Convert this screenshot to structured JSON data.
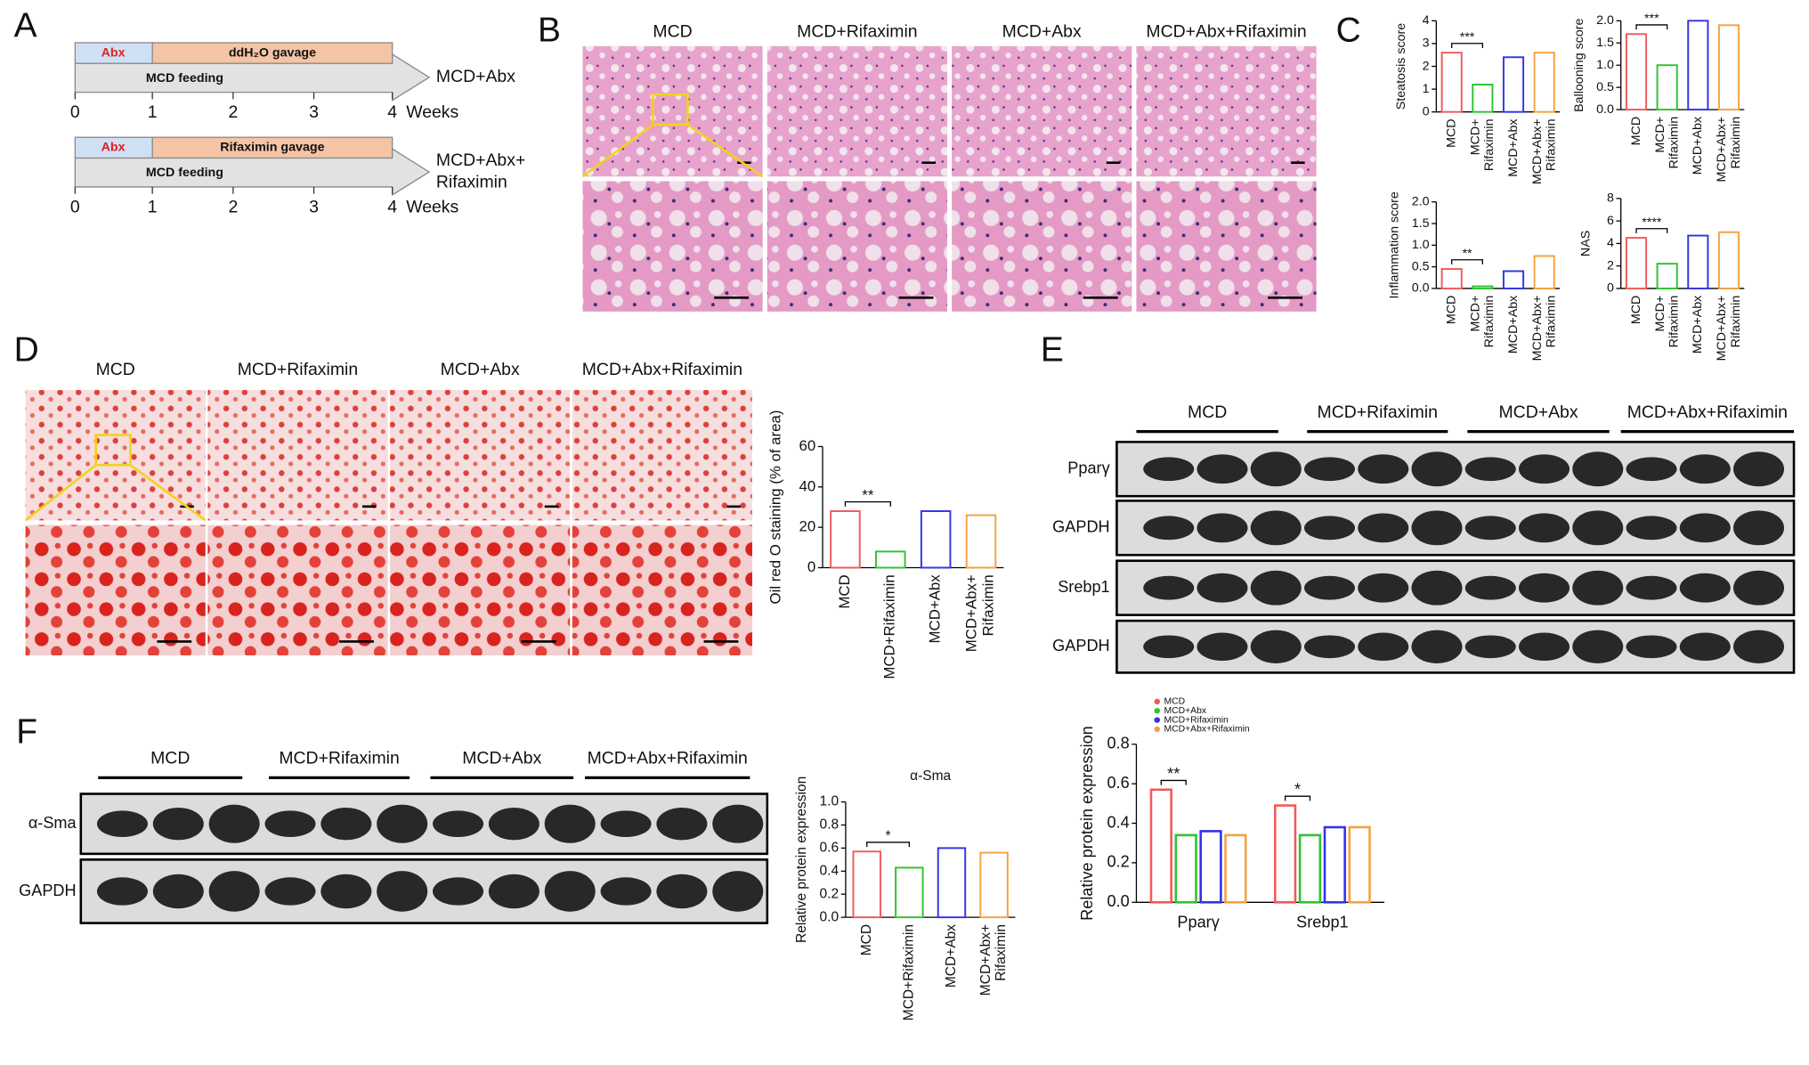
{
  "panel_labels": [
    "A",
    "B",
    "C",
    "D",
    "E",
    "F"
  ],
  "timeline": [
    {
      "boxes": [
        "Abx",
        "ddH₂O gavage"
      ],
      "feeding": "MCD feeding",
      "group": [
        "MCD+Abx"
      ],
      "ticks": [
        0,
        1,
        2,
        3,
        4
      ],
      "unit": "Weeks"
    },
    {
      "boxes": [
        "Abx",
        "Rifaximin gavage"
      ],
      "feeding": "MCD feeding",
      "group": [
        "MCD+Abx+",
        "Rifaximin"
      ],
      "ticks": [
        0,
        1,
        2,
        3,
        4
      ],
      "unit": "Weeks"
    }
  ],
  "histology_he": {
    "groups": [
      "MCD",
      "MCD+Rifaximin",
      "MCD+Abx",
      "MCD+Abx+Rifaximin"
    ]
  },
  "oil_red_o": {
    "groups": [
      "MCD",
      "MCD+Rifaximin",
      "MCD+Abx",
      "MCD+Abx+Rifaximin"
    ]
  },
  "western_e": {
    "groups": [
      "MCD",
      "MCD+Rifaximin",
      "MCD+Abx",
      "MCD+Abx+Rifaximin"
    ],
    "rows": [
      "Pparγ",
      "GAPDH",
      "Srebp1",
      "GAPDH"
    ]
  },
  "western_f": {
    "groups": [
      "MCD",
      "MCD+Rifaximin",
      "MCD+Abx",
      "MCD+Abx+Rifaximin"
    ],
    "rows": [
      "α-Sma",
      "GAPDH"
    ]
  },
  "chart_data": [
    {
      "type": "bar",
      "ylabel": "Steatosis score",
      "categories": [
        "MCD",
        "MCD+ Rifaximin",
        "MCD+Abx",
        "MCD+Abx+ Rifaximin"
      ],
      "values": [
        2.6,
        1.2,
        2.4,
        2.6
      ],
      "colors": [
        "#f05a5a",
        "#2fc42f",
        "#3434e6",
        "#f5a142"
      ],
      "ylim": [
        0,
        4
      ],
      "yticks": [
        0,
        1,
        2,
        3,
        4
      ],
      "annotations": [
        {
          "text": "***"
        }
      ]
    },
    {
      "type": "bar",
      "ylabel": "Ballooning score",
      "categories": [
        "MCD",
        "MCD+ Rifaximin",
        "MCD+Abx",
        "MCD+Abx+ Rifaximin"
      ],
      "values": [
        1.7,
        1.0,
        2.0,
        1.9
      ],
      "colors": [
        "#f05a5a",
        "#2fc42f",
        "#3434e6",
        "#f5a142"
      ],
      "ylim": [
        0,
        2
      ],
      "yticks": [
        {
          "value": 0,
          "label": "0.0"
        },
        0.5,
        {
          "value": 1,
          "label": "1.0"
        },
        1.5,
        {
          "value": 2,
          "label": "2.0"
        }
      ],
      "annotations": [
        {
          "text": "***"
        }
      ]
    },
    {
      "type": "bar",
      "ylabel": "Inflammation score",
      "categories": [
        "MCD",
        "MCD+ Rifaximin",
        "MCD+Abx",
        "MCD+Abx+ Rifaximin"
      ],
      "values": [
        0.45,
        0.05,
        0.4,
        0.75
      ],
      "colors": [
        "#f05a5a",
        "#2fc42f",
        "#3434e6",
        "#f5a142"
      ],
      "ylim": [
        0,
        2
      ],
      "yticks": [
        {
          "value": 0,
          "label": "0.0"
        },
        0.5,
        {
          "value": 1,
          "label": "1.0"
        },
        1.5,
        {
          "value": 2,
          "label": "2.0"
        }
      ],
      "annotations": [
        {
          "text": "**"
        }
      ]
    },
    {
      "type": "bar",
      "ylabel": "NAS",
      "categories": [
        "MCD",
        "MCD+ Rifaximin",
        "MCD+Abx",
        "MCD+Abx+ Rifaximin"
      ],
      "values": [
        4.5,
        2.2,
        4.7,
        5.0
      ],
      "colors": [
        "#f05a5a",
        "#2fc42f",
        "#3434e6",
        "#f5a142"
      ],
      "ylim": [
        0,
        8
      ],
      "yticks": [
        0,
        2,
        4,
        6,
        8
      ],
      "annotations": [
        {
          "text": "****"
        }
      ]
    },
    {
      "type": "bar",
      "ylabel": "Oil red O staining (% of area)",
      "categories": [
        "MCD",
        "MCD+Rifaximin",
        "MCD+Abx",
        "MCD+Abx+ Rifaximin"
      ],
      "values": [
        28,
        8,
        28,
        26
      ],
      "colors": [
        "#f05a5a",
        "#2fc42f",
        "#3434e6",
        "#f5a142"
      ],
      "ylim": [
        0,
        60
      ],
      "yticks": [
        0,
        20,
        40,
        60
      ],
      "annotations": [
        {
          "text": "**"
        }
      ]
    },
    {
      "type": "bar",
      "ylabel": "Relative protein expression",
      "categories": [
        "Pparγ",
        "Srebp1"
      ],
      "series": [
        {
          "name": "MCD",
          "color": "#f05a5a",
          "values": [
            0.57,
            0.49
          ]
        },
        {
          "name": "MCD+Abx",
          "color": "#2fc42f",
          "values": [
            0.34,
            0.34
          ]
        },
        {
          "name": "MCD+Rifaximin",
          "color": "#3434e6",
          "values": [
            0.36,
            0.38
          ]
        },
        {
          "name": "MCD+Abx+Rifaximin",
          "color": "#f5a142",
          "values": [
            0.34,
            0.38
          ]
        }
      ],
      "ylim": [
        0,
        0.8
      ],
      "yticks": [
        {
          "value": 0,
          "label": "0.0"
        },
        0.2,
        0.4,
        0.6,
        0.8
      ],
      "annotations": [
        {
          "text": "**"
        },
        {
          "text": "*"
        }
      ]
    },
    {
      "type": "bar",
      "title": "α-Sma",
      "ylabel": "Relative protein expression",
      "categories": [
        "MCD",
        "MCD+Rifaximin",
        "MCD+Abx",
        "MCD+Abx+ Rifaximin"
      ],
      "values": [
        0.57,
        0.43,
        0.6,
        0.56
      ],
      "colors": [
        "#f05a5a",
        "#2fc42f",
        "#3434e6",
        "#f5a142"
      ],
      "ylim": [
        0,
        1
      ],
      "yticks": [
        {
          "value": 0,
          "label": "0.0"
        },
        0.2,
        0.4,
        0.6,
        0.8,
        {
          "value": 1,
          "label": "1.0"
        }
      ],
      "annotations": [
        {
          "text": "*"
        }
      ]
    }
  ]
}
